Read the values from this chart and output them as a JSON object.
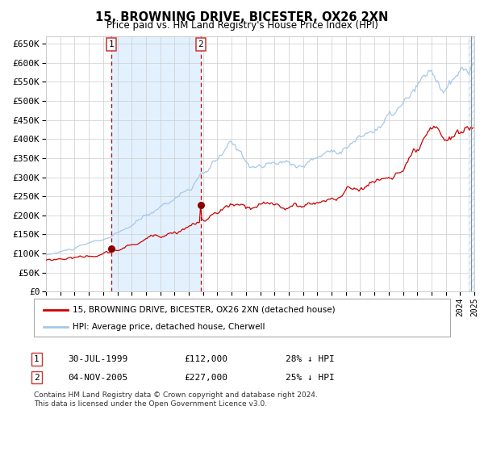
{
  "title": "15, BROWNING DRIVE, BICESTER, OX26 2XN",
  "subtitle": "Price paid vs. HM Land Registry's House Price Index (HPI)",
  "legend1": "15, BROWNING DRIVE, BICESTER, OX26 2XN (detached house)",
  "legend2": "HPI: Average price, detached house, Cherwell",
  "sale1_date": "30-JUL-1999",
  "sale1_price": 112000,
  "sale1_label": "28% ↓ HPI",
  "sale2_date": "04-NOV-2005",
  "sale2_price": 227000,
  "sale2_label": "25% ↓ HPI",
  "footnote1": "Contains HM Land Registry data © Crown copyright and database right 2024.",
  "footnote2": "This data is licensed under the Open Government Licence v3.0.",
  "ylim": [
    0,
    670000
  ],
  "yticks": [
    0,
    50000,
    100000,
    150000,
    200000,
    250000,
    300000,
    350000,
    400000,
    450000,
    500000,
    550000,
    600000,
    650000
  ],
  "hpi_color": "#a8c8e8",
  "price_color": "#cc0000",
  "dot_color": "#8b0000",
  "vline_color": "#cc0000",
  "bg_fill_color": "#ddeeff",
  "grid_color": "#cccccc",
  "sale1_year": 1999.58,
  "sale2_year": 2005.84,
  "xmin": 1995,
  "xmax": 2025
}
